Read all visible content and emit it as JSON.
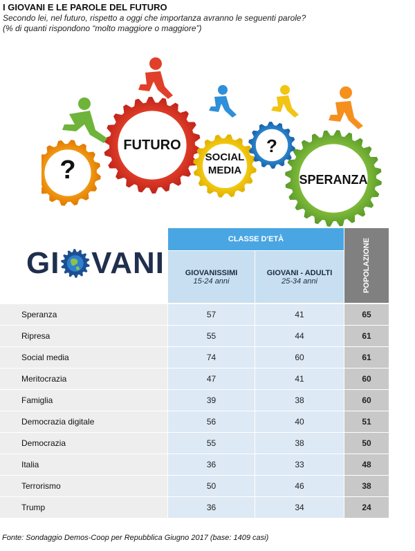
{
  "title": "I GIOVANI E LE PAROLE DEL FUTURO",
  "subtitle_line1": "Secondo lei, nel futuro, rispetto a oggi che importanza avranno le seguenti parole?",
  "subtitle_line2": "(% di quanti rispondono “molto maggiore o maggiore”)",
  "illustration": {
    "gear_labels": [
      "FUTURO",
      "SOCIAL",
      "MEDIA",
      "SPERANZA"
    ],
    "question_mark": "?"
  },
  "logo": {
    "left": "GI",
    "right": "VANI"
  },
  "table_header": {
    "group": "CLASSE D'ETÀ",
    "col1_name": "GIOVANISSIMI",
    "col1_range": "15-24 anni",
    "col2_name": "GIOVANI - ADULTI",
    "col2_range": "25-34 anni",
    "col3_name": "POPOLAZIONE"
  },
  "chart_data": {
    "type": "table",
    "columns": [
      "GIOVANISSIMI 15-24 anni",
      "GIOVANI - ADULTI 25-34 anni",
      "POPOLAZIONE"
    ],
    "rows": [
      {
        "label": "Speranza",
        "values": [
          57,
          41,
          65
        ]
      },
      {
        "label": "Ripresa",
        "values": [
          55,
          44,
          61
        ]
      },
      {
        "label": "Social media",
        "values": [
          74,
          60,
          61
        ]
      },
      {
        "label": "Meritocrazia",
        "values": [
          47,
          41,
          60
        ]
      },
      {
        "label": "Famiglia",
        "values": [
          39,
          38,
          60
        ]
      },
      {
        "label": "Democrazia digitale",
        "values": [
          56,
          40,
          51
        ]
      },
      {
        "label": "Democrazia",
        "values": [
          55,
          38,
          50
        ]
      },
      {
        "label": "Italia",
        "values": [
          36,
          33,
          48
        ]
      },
      {
        "label": "Terrorismo",
        "values": [
          50,
          46,
          38
        ]
      },
      {
        "label": "Trump",
        "values": [
          36,
          34,
          24
        ]
      }
    ]
  },
  "source": "Fonte: Sondaggio Demos-Coop per Repubblica Giugno 2017 (base: 1409 casi)"
}
